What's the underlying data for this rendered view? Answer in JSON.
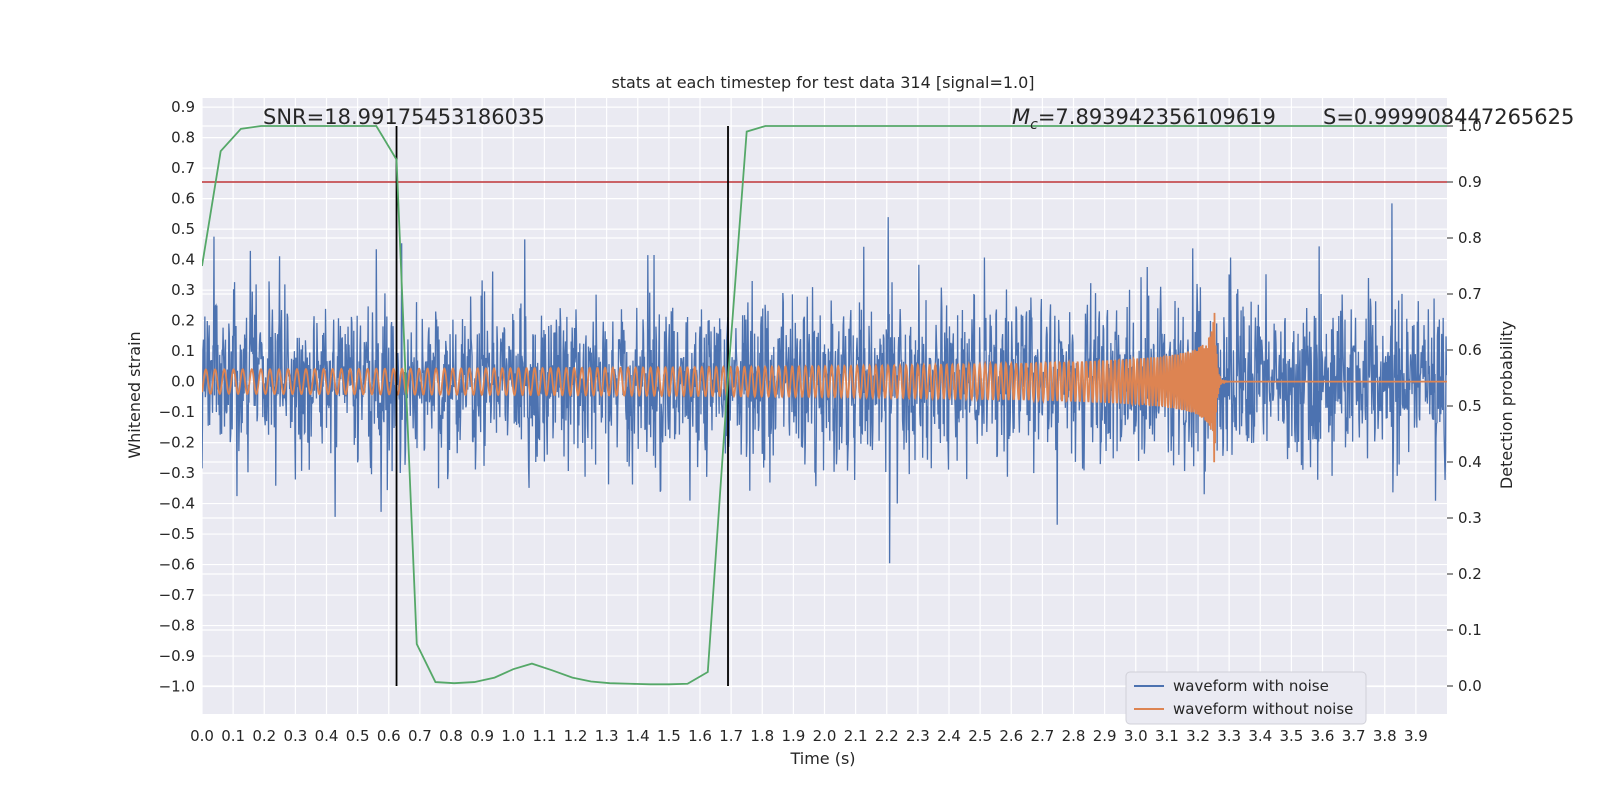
{
  "chart_data": {
    "type": "line",
    "title": "stats at each timestep for test data 314 [signal=1.0]",
    "xlabel": "Time (s)",
    "ylabel": "Whitened strain",
    "y2label": "Detection probability",
    "xlim": [
      0.0,
      4.0
    ],
    "ylim": [
      -1.09,
      0.93
    ],
    "y2lim": [
      -0.05,
      1.05
    ],
    "x_ticks": [
      "0.0",
      "0.1",
      "0.2",
      "0.3",
      "0.4",
      "0.5",
      "0.6",
      "0.7",
      "0.8",
      "0.9",
      "1.0",
      "1.1",
      "1.2",
      "1.3",
      "1.4",
      "1.5",
      "1.6",
      "1.7",
      "1.8",
      "1.9",
      "2.0",
      "2.1",
      "2.2",
      "2.3",
      "2.4",
      "2.5",
      "2.6",
      "2.7",
      "2.8",
      "2.9",
      "3.0",
      "3.1",
      "3.2",
      "3.3",
      "3.4",
      "3.5",
      "3.6",
      "3.7",
      "3.8",
      "3.9"
    ],
    "y_ticks": [
      "0.9",
      "0.8",
      "0.7",
      "0.6",
      "0.5",
      "0.4",
      "0.3",
      "0.2",
      "0.1",
      "0.0",
      "−0.1",
      "−0.2",
      "−0.3",
      "−0.4",
      "−0.5",
      "−0.6",
      "−0.7",
      "−0.8",
      "−0.9",
      "−1.0"
    ],
    "y2_ticks": [
      "1.0",
      "0.9",
      "0.8",
      "0.7",
      "0.6",
      "0.5",
      "0.4",
      "0.3",
      "0.2",
      "0.1",
      "0.0"
    ],
    "annotations": {
      "snr": "SNR=18.99175453186035",
      "mc_symbol": "M",
      "mc_sub": "c",
      "mc_value": "=7.893942356109619",
      "s": "S=0.999908447265625"
    },
    "threshold": 0.9,
    "vlines": [
      0.625,
      1.69
    ],
    "merger_time": 3.25,
    "series": [
      {
        "name": "waveform with noise",
        "color": "#4c72b0",
        "amplitude_envelope": [
          -0.55,
          0.6
        ]
      },
      {
        "name": "waveform without noise",
        "color": "#dd8452",
        "amplitude_start": 0.04,
        "amplitude_peak": 0.45
      },
      {
        "color": "#55a868",
        "x": [
          0.0,
          0.06,
          0.125,
          0.19,
          0.25,
          0.31,
          0.375,
          0.44,
          0.5,
          0.56,
          0.625,
          0.69,
          0.75,
          0.81,
          0.875,
          0.94,
          1.0,
          1.06,
          1.125,
          1.19,
          1.25,
          1.31,
          1.375,
          1.44,
          1.5,
          1.56,
          1.625,
          1.69,
          1.75,
          1.81,
          1.875,
          2.0,
          2.5,
          3.0,
          3.5,
          4.0
        ],
        "values": [
          0.75,
          0.955,
          0.995,
          1.0,
          1.0,
          1.0,
          1.0,
          1.0,
          1.0,
          1.0,
          0.94,
          0.075,
          0.007,
          0.005,
          0.007,
          0.015,
          0.03,
          0.04,
          0.028,
          0.015,
          0.008,
          0.005,
          0.004,
          0.003,
          0.003,
          0.004,
          0.025,
          0.55,
          0.99,
          1.0,
          1.0,
          1.0,
          1.0,
          1.0,
          1.0,
          1.0
        ]
      }
    ],
    "legend": {
      "placement": "lower-right",
      "labels": [
        "waveform with noise",
        "waveform without noise"
      ]
    },
    "colors": {
      "background": "#eaeaf2",
      "grid": "#ffffff",
      "threshold": "#c44e52",
      "vline": "#000000"
    },
    "grid": true
  }
}
